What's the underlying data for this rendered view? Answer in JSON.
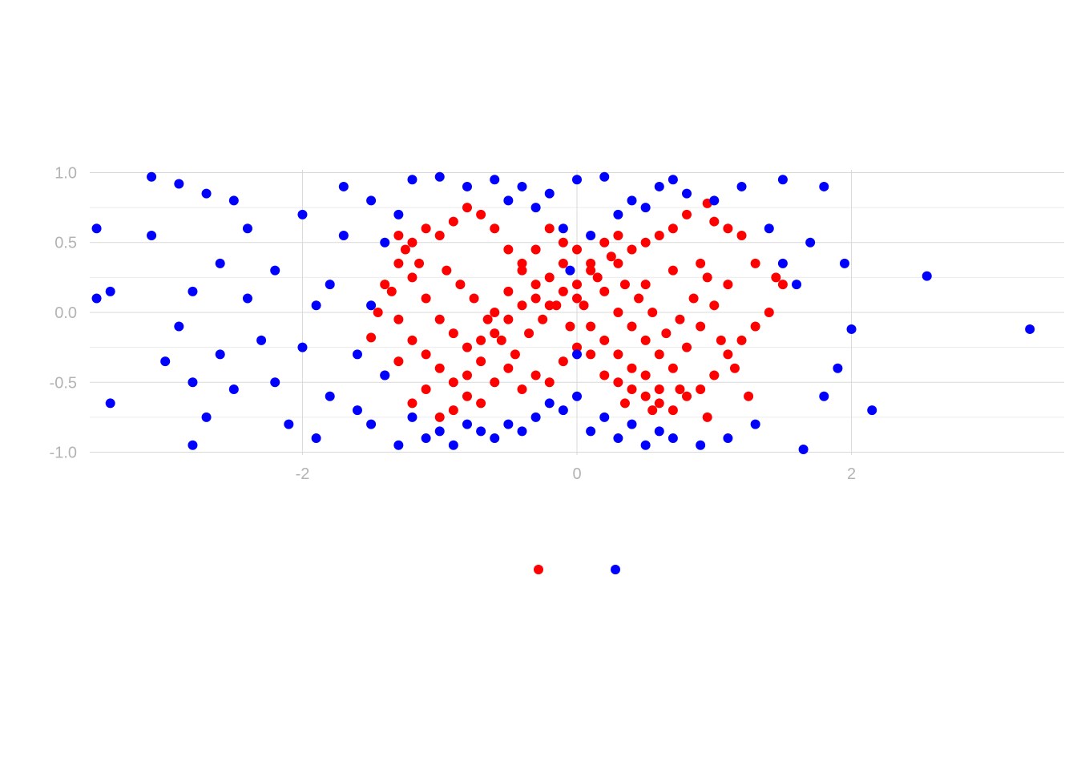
{
  "chart_data": {
    "type": "scatter",
    "title": "",
    "xlabel": "",
    "ylabel": "",
    "xlim": [
      -3.55,
      3.55
    ],
    "ylim": [
      -1.02,
      1.02
    ],
    "x_ticks": [
      -2,
      0,
      2
    ],
    "x_tick_labels": [
      "-2",
      "0",
      "2"
    ],
    "y_ticks": [
      1.0,
      0.5,
      0.0,
      -0.5,
      -1.0
    ],
    "y_tick_labels": [
      "1.0",
      "0.5",
      "0.0",
      "-0.5",
      "-1.0"
    ],
    "grid": true,
    "legend_position": "bottom",
    "series": [
      {
        "color": "#ff0000",
        "points": [
          [
            -1.3,
            0.35
          ],
          [
            -1.4,
            0.2
          ],
          [
            -1.45,
            0.0
          ],
          [
            -1.5,
            -0.18
          ],
          [
            -1.4,
            -0.45
          ],
          [
            -1.3,
            -0.35
          ],
          [
            -1.2,
            -0.65
          ],
          [
            -1.1,
            -0.55
          ],
          [
            -1.0,
            -0.75
          ],
          [
            -0.9,
            -0.7
          ],
          [
            -0.8,
            -0.6
          ],
          [
            -0.7,
            -0.65
          ],
          [
            -0.6,
            -0.5
          ],
          [
            -0.5,
            -0.4
          ],
          [
            -0.4,
            -0.55
          ],
          [
            -0.3,
            -0.45
          ],
          [
            -0.2,
            -0.5
          ],
          [
            -0.1,
            -0.35
          ],
          [
            0.0,
            -0.25
          ],
          [
            0.1,
            -0.3
          ],
          [
            0.2,
            -0.45
          ],
          [
            0.3,
            -0.5
          ],
          [
            0.4,
            -0.55
          ],
          [
            0.5,
            -0.6
          ],
          [
            0.6,
            -0.65
          ],
          [
            0.7,
            -0.7
          ],
          [
            0.8,
            -0.6
          ],
          [
            0.9,
            -0.55
          ],
          [
            1.0,
            -0.45
          ],
          [
            1.1,
            -0.3
          ],
          [
            1.2,
            -0.2
          ],
          [
            1.3,
            -0.1
          ],
          [
            1.4,
            0.0
          ],
          [
            1.5,
            0.2
          ],
          [
            1.45,
            0.25
          ],
          [
            1.3,
            0.35
          ],
          [
            1.2,
            0.55
          ],
          [
            1.1,
            0.6
          ],
          [
            1.0,
            0.65
          ],
          [
            0.95,
            0.78
          ],
          [
            0.8,
            0.7
          ],
          [
            0.7,
            0.6
          ],
          [
            0.6,
            0.55
          ],
          [
            0.5,
            0.5
          ],
          [
            0.4,
            0.45
          ],
          [
            0.3,
            0.55
          ],
          [
            0.2,
            0.5
          ],
          [
            0.1,
            0.35
          ],
          [
            0.0,
            0.2
          ],
          [
            -0.1,
            0.15
          ],
          [
            -0.2,
            0.05
          ],
          [
            -0.3,
            0.2
          ],
          [
            -0.4,
            0.3
          ],
          [
            -0.5,
            0.45
          ],
          [
            -0.6,
            0.6
          ],
          [
            -0.7,
            0.7
          ],
          [
            -0.8,
            0.75
          ],
          [
            -0.9,
            0.65
          ],
          [
            -1.0,
            0.55
          ],
          [
            -1.1,
            0.6
          ],
          [
            -1.2,
            0.5
          ],
          [
            -1.3,
            0.55
          ],
          [
            -1.2,
            0.25
          ],
          [
            -1.1,
            0.1
          ],
          [
            -1.0,
            -0.05
          ],
          [
            -0.9,
            -0.15
          ],
          [
            -0.8,
            -0.25
          ],
          [
            -0.7,
            -0.35
          ],
          [
            -0.6,
            -0.15
          ],
          [
            -0.5,
            -0.05
          ],
          [
            -0.4,
            0.05
          ],
          [
            -0.3,
            0.1
          ],
          [
            -0.2,
            0.25
          ],
          [
            -0.1,
            0.35
          ],
          [
            0.0,
            0.45
          ],
          [
            0.1,
            0.3
          ],
          [
            0.2,
            0.15
          ],
          [
            0.3,
            0.0
          ],
          [
            0.4,
            -0.1
          ],
          [
            0.5,
            -0.2
          ],
          [
            0.6,
            -0.3
          ],
          [
            0.7,
            -0.4
          ],
          [
            0.8,
            -0.25
          ],
          [
            0.9,
            -0.1
          ],
          [
            1.0,
            0.05
          ],
          [
            1.1,
            0.2
          ],
          [
            0.9,
            0.35
          ],
          [
            0.7,
            0.3
          ],
          [
            0.5,
            0.2
          ],
          [
            0.3,
            0.35
          ],
          [
            -1.3,
            -0.05
          ],
          [
            -1.2,
            -0.2
          ],
          [
            -1.1,
            -0.3
          ],
          [
            -1.0,
            -0.4
          ],
          [
            -0.9,
            -0.5
          ],
          [
            -0.8,
            -0.45
          ],
          [
            -0.7,
            -0.2
          ],
          [
            -0.6,
            0.0
          ],
          [
            -0.5,
            0.15
          ],
          [
            -0.4,
            0.35
          ],
          [
            -0.3,
            0.45
          ],
          [
            -0.2,
            0.6
          ],
          [
            -0.1,
            0.5
          ],
          [
            0.0,
            0.1
          ],
          [
            0.1,
            -0.1
          ],
          [
            0.2,
            -0.2
          ],
          [
            0.3,
            -0.3
          ],
          [
            0.4,
            -0.4
          ],
          [
            0.5,
            -0.45
          ],
          [
            0.6,
            -0.55
          ],
          [
            -0.95,
            0.3
          ],
          [
            -0.85,
            0.2
          ],
          [
            -0.75,
            0.1
          ],
          [
            -0.65,
            -0.05
          ],
          [
            -0.55,
            -0.2
          ],
          [
            -0.45,
            -0.3
          ],
          [
            -0.35,
            -0.15
          ],
          [
            -0.25,
            -0.05
          ],
          [
            -0.15,
            0.05
          ],
          [
            -0.05,
            -0.1
          ],
          [
            0.05,
            0.05
          ],
          [
            0.15,
            0.25
          ],
          [
            0.25,
            0.4
          ],
          [
            0.35,
            0.2
          ],
          [
            0.45,
            0.1
          ],
          [
            0.55,
            0.0
          ],
          [
            0.65,
            -0.15
          ],
          [
            0.75,
            -0.05
          ],
          [
            0.85,
            0.1
          ],
          [
            0.95,
            0.25
          ],
          [
            1.05,
            -0.2
          ],
          [
            1.15,
            -0.4
          ],
          [
            1.25,
            -0.6
          ],
          [
            0.95,
            -0.75
          ],
          [
            0.75,
            -0.55
          ],
          [
            0.55,
            -0.7
          ],
          [
            0.35,
            -0.65
          ],
          [
            -1.35,
            0.15
          ],
          [
            -1.25,
            0.45
          ],
          [
            -1.15,
            0.35
          ]
        ]
      },
      {
        "color": "#0000ff",
        "points": [
          [
            -3.5,
            0.6
          ],
          [
            -3.5,
            0.1
          ],
          [
            -3.4,
            0.15
          ],
          [
            -3.4,
            -0.65
          ],
          [
            -3.1,
            0.97
          ],
          [
            -3.1,
            0.55
          ],
          [
            -3.0,
            -0.35
          ],
          [
            -2.9,
            0.92
          ],
          [
            -2.8,
            0.15
          ],
          [
            -2.8,
            -0.5
          ],
          [
            -2.7,
            -0.75
          ],
          [
            -2.7,
            0.85
          ],
          [
            -2.6,
            0.35
          ],
          [
            -2.5,
            -0.55
          ],
          [
            -2.4,
            0.6
          ],
          [
            -2.3,
            -0.2
          ],
          [
            -2.2,
            0.3
          ],
          [
            -2.1,
            -0.8
          ],
          [
            -2.0,
            0.7
          ],
          [
            -1.9,
            -0.9
          ],
          [
            -1.8,
            0.2
          ],
          [
            -1.7,
            0.9
          ],
          [
            -1.6,
            -0.3
          ],
          [
            -1.5,
            0.8
          ],
          [
            -1.5,
            -0.8
          ],
          [
            -1.4,
            0.5
          ],
          [
            -1.3,
            -0.95
          ],
          [
            -1.2,
            0.95
          ],
          [
            -1.1,
            -0.9
          ],
          [
            -1.0,
            0.97
          ],
          [
            -0.9,
            -0.95
          ],
          [
            -0.8,
            0.9
          ],
          [
            -0.7,
            -0.85
          ],
          [
            -0.6,
            0.95
          ],
          [
            -0.5,
            -0.8
          ],
          [
            -0.4,
            0.9
          ],
          [
            -0.3,
            -0.75
          ],
          [
            -0.2,
            0.85
          ],
          [
            -0.1,
            -0.7
          ],
          [
            0.0,
            0.95
          ],
          [
            0.1,
            -0.85
          ],
          [
            0.2,
            0.97
          ],
          [
            0.3,
            -0.9
          ],
          [
            0.4,
            0.8
          ],
          [
            0.5,
            -0.95
          ],
          [
            0.6,
            0.9
          ],
          [
            0.7,
            -0.9
          ],
          [
            0.8,
            0.85
          ],
          [
            0.9,
            -0.95
          ],
          [
            1.0,
            0.8
          ],
          [
            1.1,
            -0.9
          ],
          [
            1.2,
            0.9
          ],
          [
            1.3,
            -0.8
          ],
          [
            1.4,
            0.6
          ],
          [
            1.5,
            0.35
          ],
          [
            1.6,
            0.2
          ],
          [
            1.7,
            0.5
          ],
          [
            1.8,
            -0.6
          ],
          [
            1.9,
            -0.4
          ],
          [
            1.95,
            0.35
          ],
          [
            2.0,
            -0.12
          ],
          [
            2.15,
            -0.7
          ],
          [
            2.55,
            0.26
          ],
          [
            3.3,
            -0.12
          ],
          [
            1.65,
            -0.98
          ],
          [
            1.8,
            0.9
          ],
          [
            1.5,
            0.95
          ],
          [
            -2.2,
            -0.5
          ],
          [
            -2.0,
            -0.25
          ],
          [
            -1.9,
            0.05
          ],
          [
            -1.8,
            -0.6
          ],
          [
            -1.7,
            0.55
          ],
          [
            -1.6,
            -0.7
          ],
          [
            -1.5,
            0.05
          ],
          [
            -1.4,
            -0.45
          ],
          [
            -1.3,
            0.7
          ],
          [
            -1.2,
            -0.75
          ],
          [
            -1.0,
            -0.85
          ],
          [
            -0.8,
            -0.8
          ],
          [
            -0.6,
            -0.9
          ],
          [
            -0.4,
            -0.85
          ],
          [
            -0.2,
            -0.65
          ],
          [
            0.0,
            -0.6
          ],
          [
            0.2,
            -0.75
          ],
          [
            0.4,
            -0.8
          ],
          [
            0.6,
            -0.85
          ],
          [
            -0.5,
            0.8
          ],
          [
            -0.3,
            0.75
          ],
          [
            -0.1,
            0.6
          ],
          [
            0.1,
            0.55
          ],
          [
            0.3,
            0.7
          ],
          [
            0.5,
            0.75
          ],
          [
            0.7,
            0.95
          ],
          [
            -0.05,
            0.3
          ],
          [
            0.0,
            -0.3
          ],
          [
            -2.6,
            -0.3
          ],
          [
            -2.4,
            0.1
          ],
          [
            -2.8,
            -0.95
          ],
          [
            -2.9,
            -0.1
          ],
          [
            -2.5,
            0.8
          ]
        ]
      }
    ]
  }
}
